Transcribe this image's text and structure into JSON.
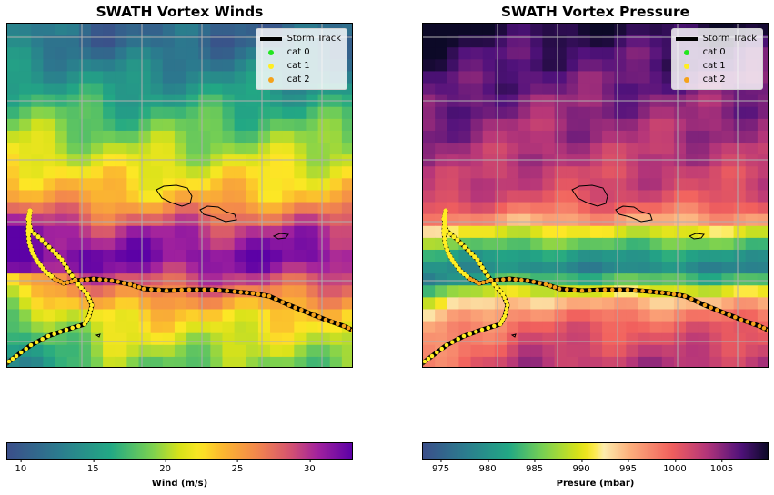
{
  "chart_data": [
    {
      "type": "heatmap",
      "title": "SWATH Vortex Winds",
      "colorbar_label": "Wind (m/s)",
      "colorbar_ticks": [
        10,
        15,
        20,
        25,
        30
      ],
      "vmin": 9,
      "vmax": 33,
      "colormap": "plasma_r-viridis",
      "grid": true,
      "legend_position": "top-right",
      "legend": [
        {
          "label": "Storm Track",
          "color": "#000000",
          "kind": "line"
        },
        {
          "label": "cat 0",
          "color": "#22e61e",
          "kind": "marker"
        },
        {
          "label": "cat 1",
          "color": "#ffee22",
          "kind": "marker"
        },
        {
          "label": "cat 2",
          "color": "#f5a21a",
          "kind": "marker"
        }
      ],
      "row_profile": [
        11,
        11,
        12,
        13,
        14,
        15,
        16,
        17,
        18,
        19,
        20,
        21,
        22,
        23,
        24,
        26,
        28,
        30,
        31,
        32,
        31,
        29,
        27,
        25,
        23,
        22,
        21,
        20,
        19
      ]
    },
    {
      "type": "heatmap",
      "title": "SWATH Vortex Pressure",
      "colorbar_label": "Presure (mbar)",
      "colorbar_ticks": [
        975,
        980,
        985,
        990,
        995,
        1000,
        1005
      ],
      "vmin": 973,
      "vmax": 1010,
      "colormap": "magma-viridis",
      "grid": true,
      "legend_position": "top-right",
      "legend": [
        {
          "label": "Storm Track",
          "color": "#000000",
          "kind": "line"
        },
        {
          "label": "cat 0",
          "color": "#22e61e",
          "kind": "marker"
        },
        {
          "label": "cat 1",
          "color": "#ffee22",
          "kind": "marker"
        },
        {
          "label": "cat 2",
          "color": "#f5a21a",
          "kind": "marker"
        }
      ],
      "row_profile": [
        1009,
        1008,
        1007,
        1007,
        1006,
        1006,
        1005,
        1005,
        1004,
        1004,
        1003,
        1003,
        1002,
        1002,
        1001,
        999,
        996,
        990,
        985,
        981,
        979,
        984,
        990,
        995,
        998,
        1000,
        1001,
        1002,
        1003
      ]
    }
  ]
}
